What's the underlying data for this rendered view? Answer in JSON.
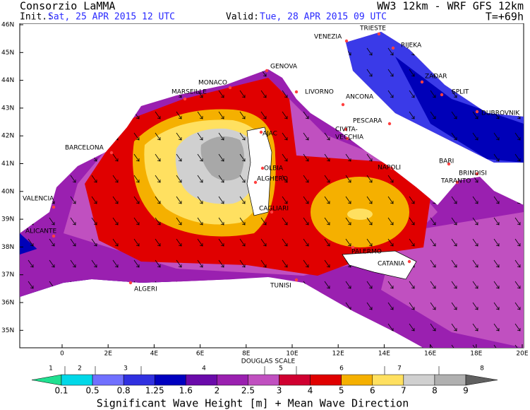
{
  "header": {
    "title": "Consorzio LaMMA",
    "model": "WW3 12km - WRF GFS 12km",
    "init_label": "Init.:",
    "init": "Sat, 25 APR 2015  12 UTC",
    "valid_label": "Valid:",
    "valid": "Tue, 28 APR 2015  09 UTC",
    "lead": "T=+69h"
  },
  "axes": {
    "lat": [
      "46N",
      "45N",
      "44N",
      "43N",
      "42N",
      "41N",
      "40N",
      "39N",
      "38N",
      "37N",
      "36N",
      "35N"
    ],
    "lon": [
      "0",
      "2E",
      "4E",
      "6E",
      "8E",
      "10E",
      "12E",
      "14E",
      "16E",
      "18E",
      "20E"
    ]
  },
  "cities": [
    "TRIESTE",
    "VENEZIA",
    "RIJEKA",
    "GENOVA",
    "MONACO",
    "MARSEILLE",
    "LIVORNO",
    "ANCONA",
    "ZADAR",
    "SPLIT",
    "DUBROVNIK",
    "PESCARA",
    "CIVITA-",
    "VECCHIA",
    "AJAC",
    "BARCELONA",
    "BARI",
    "BRINDISI",
    "NAPOLI",
    "OLBIA",
    "ALGHERO",
    "TARANTO",
    "VALENCIA",
    "CAGLIARI",
    "ALICANTE",
    "PALERMO",
    "CATANIA",
    "ALGERI",
    "TUNISI"
  ],
  "colorbar": {
    "douglas_title": "DOUGLAS SCALE",
    "douglas": [
      "1",
      "2",
      "3",
      "4",
      "5",
      "6",
      "7",
      "8"
    ],
    "thresholds": [
      "0.1",
      "0.5",
      "0.8",
      "1.25",
      "1.6",
      "2",
      "2.5",
      "3",
      "4",
      "5",
      "6",
      "7",
      "8",
      "9"
    ],
    "caption": "Significant Wave Height [m] + Mean Wave Direction"
  }
}
